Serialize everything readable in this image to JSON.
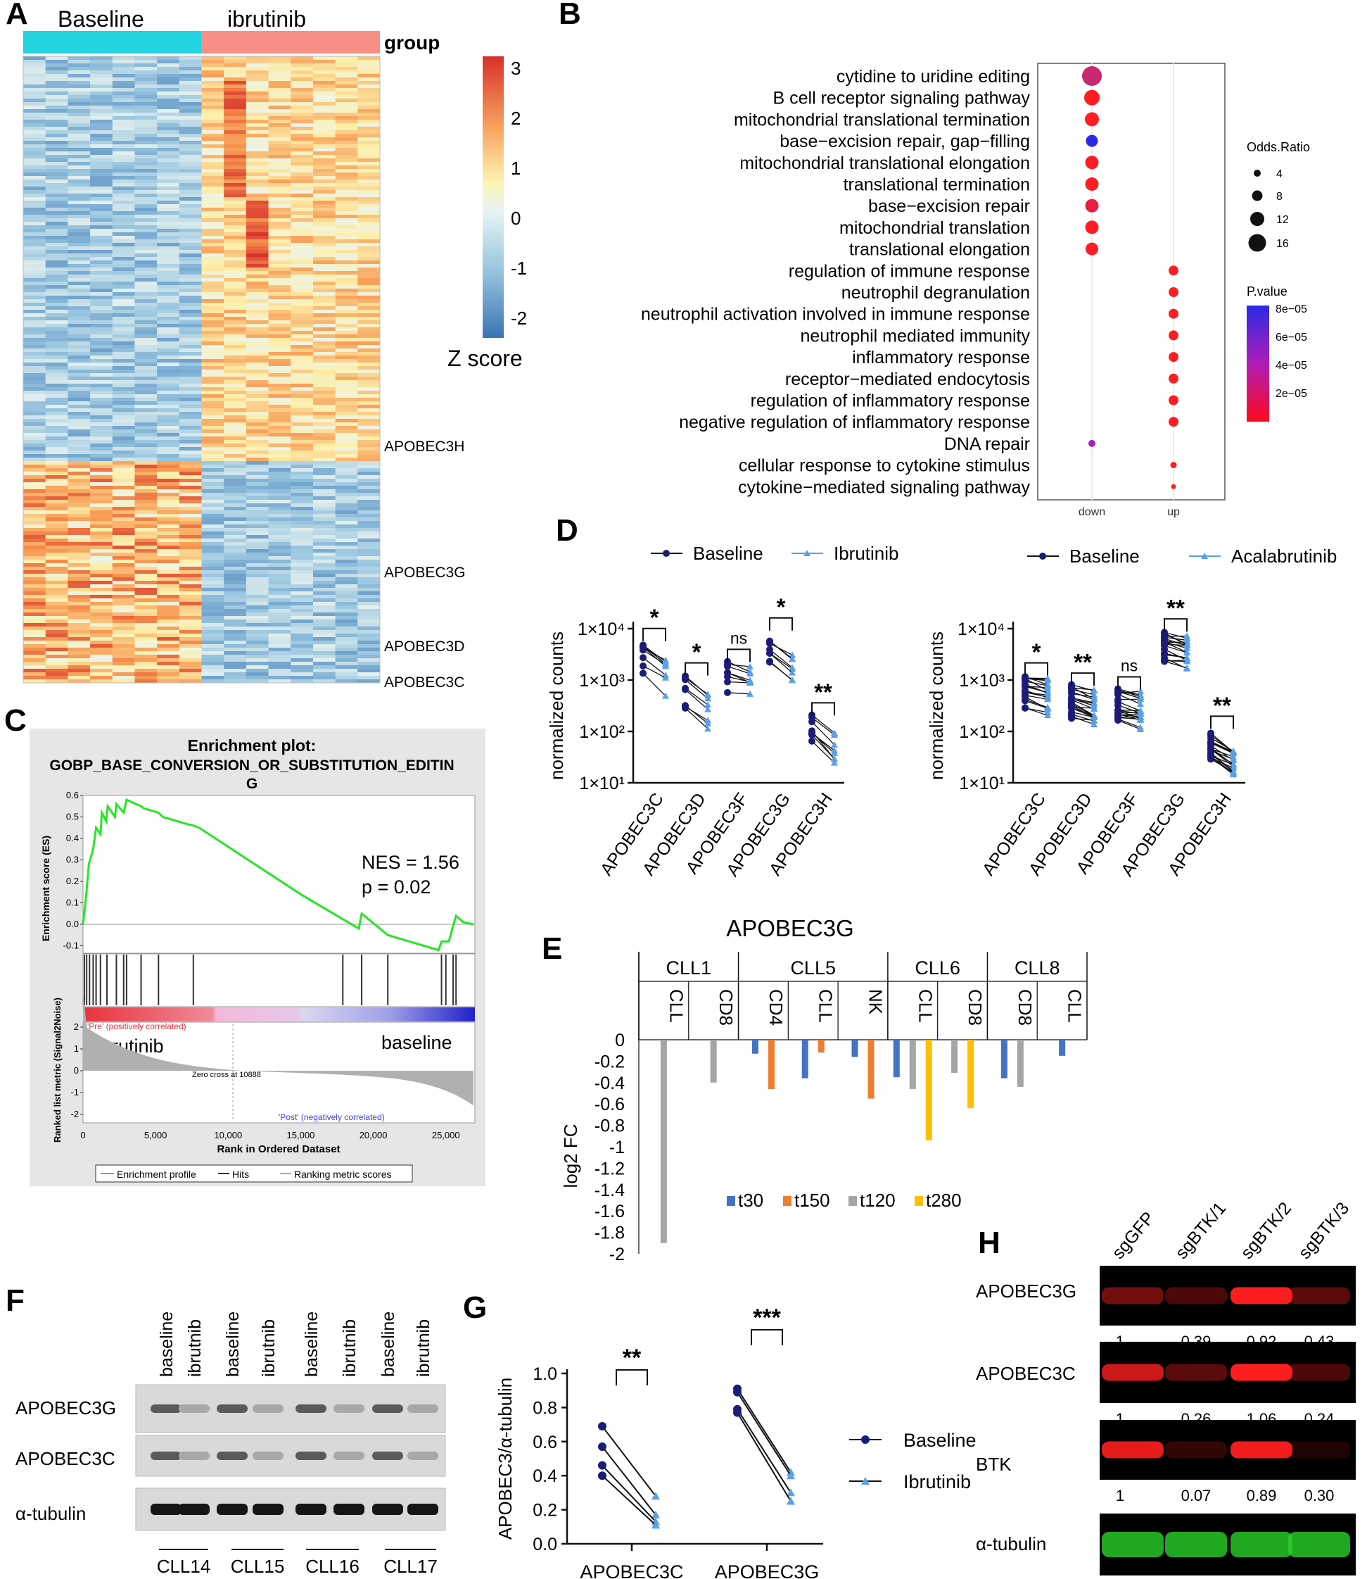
{
  "panels": {
    "A": {
      "label": "A",
      "groups": [
        "Baseline",
        "ibrutinib"
      ],
      "group_title": "group",
      "group_colors": [
        "#22d3e0",
        "#f88f86"
      ],
      "colorbar": {
        "title": "Z score",
        "ticks": [
          "3",
          "2",
          "1",
          "0",
          "-1",
          "-2"
        ]
      },
      "gene_labels": [
        "APOBEC3H",
        "APOBEC3G",
        "APOBEC3D",
        "APOBEC3C"
      ]
    },
    "B": {
      "label": "B",
      "terms": [
        "cytidine to uridine editing",
        "B cell receptor signaling pathway",
        "mitochondrial translational termination",
        "base−excision repair, gap−filling",
        "mitochondrial translational elongation",
        "translational termination",
        "base−excision repair",
        "mitochondrial translation",
        "translational elongation",
        "regulation of immune response",
        "neutrophil degranulation",
        "neutrophil activation involved in immune response",
        "neutrophil mediated immunity",
        "inflammatory response",
        "receptor−mediated endocytosis",
        "regulation of inflammatory response",
        "negative regulation of inflammatory response",
        "DNA repair",
        "cellular response to cytokine stimulus",
        "cytokine−mediated signaling pathway"
      ],
      "x_ticks": [
        "down",
        "up"
      ],
      "legend_size_title": "Odds.Ratio",
      "legend_size_values": [
        "4",
        "8",
        "12",
        "16"
      ],
      "legend_color_title": "P.value",
      "legend_color_values": [
        "8e−05",
        "6e−05",
        "4e−05",
        "2e−05"
      ]
    },
    "C": {
      "label": "C",
      "title_line1": "Enrichment plot:",
      "title_line2": "GOBP_BASE_CONVERSION_OR_SUBSTITUTION_EDITIN",
      "title_line3": "G",
      "ylabel_top": "Enrichment score (ES)",
      "ylabel_bottom": "Ranked list metric (Signal2Noise)",
      "xlabel": "Rank in Ordered Dataset",
      "es_ticks": [
        "0.6",
        "0.5",
        "0.4",
        "0.3",
        "0.2",
        "0.1",
        "0.0",
        "-0.1"
      ],
      "metric_ticks": [
        "2",
        "1",
        "0",
        "-1",
        "-2"
      ],
      "x_ticks": [
        "0",
        "5,000",
        "10,000",
        "15,000",
        "20,000",
        "25,000"
      ],
      "nes": "NES = 1.56",
      "pval": "p = 0.02",
      "pre_label": "'Pre' (positively correlated)",
      "post_label": "'Post' (negatively correlated)",
      "zero_cross": "Zero cross at 10888",
      "left_group": "ibrutinib",
      "right_group": "baseline",
      "legend": [
        "Enrichment profile",
        "Hits",
        "Ranking metric scores"
      ]
    },
    "D": {
      "label": "D",
      "ylabel": "normalized counts",
      "y_ticks": [
        "1×10⁴",
        "1×10³",
        "1×10²",
        "1×10¹"
      ],
      "genes": [
        "APOBEC3C",
        "APOBEC3D",
        "APOBEC3F",
        "APOBEC3G",
        "APOBEC3H"
      ],
      "left": {
        "legend": [
          "Baseline",
          "Ibrutinib"
        ],
        "sig": [
          "*",
          "*",
          "ns",
          "*",
          "**"
        ]
      },
      "right": {
        "legend": [
          "Baseline",
          "Acalabrutinib"
        ],
        "sig": [
          "*",
          "**",
          "ns",
          "**",
          "**"
        ]
      }
    },
    "E": {
      "label": "E",
      "title": "APOBEC3G",
      "ylabel": "log2 FC",
      "y_ticks": [
        "0",
        "-0.2",
        "-0.4",
        "-0.6",
        "-0.8",
        "-1",
        "-1.2",
        "-1.4",
        "-1.6",
        "-1.8",
        "-2"
      ],
      "legend": [
        "t30",
        "t150",
        "t120",
        "t280"
      ],
      "colors": [
        "#4472c4",
        "#ed7d31",
        "#a5a5a5",
        "#ffc000"
      ]
    },
    "F": {
      "label": "F",
      "lanes": [
        "baseline",
        "ibrutnib",
        "baseline",
        "ibrutnib",
        "baseline",
        "ibrutnib",
        "baseline",
        "ibrutnib"
      ],
      "rows": [
        "APOBEC3G",
        "APOBEC3C",
        "α-tubulin"
      ],
      "patients": [
        "CLL14",
        "CLL15",
        "CLL16",
        "CLL17"
      ]
    },
    "G": {
      "label": "G",
      "ylabel": "APOBEC3/α-tubulin",
      "y_ticks": [
        "1.0",
        "0.8",
        "0.6",
        "0.4",
        "0.2",
        "0.0"
      ],
      "x_labels": [
        "APOBEC3C",
        "APOBEC3G"
      ],
      "sig": [
        "**",
        "***"
      ],
      "legend": [
        "Baseline",
        "Ibrutinib"
      ]
    },
    "H": {
      "label": "H",
      "lanes": [
        "sgGFP",
        "sgBTK/1",
        "sgBTK/2",
        "sgBTK/3"
      ],
      "rows": [
        "APOBEC3G",
        "APOBEC3C",
        "BTK",
        "α-tubulin"
      ],
      "quant_a3g": [
        "1",
        "0.39",
        "0.92",
        "0.43"
      ],
      "quant_a3c": [
        "1",
        "0.26",
        "1.06",
        "0.24"
      ],
      "quant_btk": [
        "1",
        "0.07",
        "0.89",
        "0.30"
      ]
    }
  },
  "chart_data": [
    {
      "type": "bar",
      "title": "APOBEC3G",
      "ylabel": "log2 FC",
      "ylim": [
        -2,
        0
      ],
      "categories": [
        "CLL1 CLL",
        "CLL1 CD8",
        "CLL5 CD4",
        "CLL5 CLL",
        "CLL5 NK",
        "CLL6 CLL",
        "CLL6 CD8",
        "CLL8 CD8",
        "CLL8 CLL"
      ],
      "group_labels": [
        "CLL1",
        "CLL5",
        "CLL6",
        "CLL8"
      ],
      "cell_labels": [
        "CLL",
        "CD8",
        "CD4",
        "CLL",
        "NK",
        "CLL",
        "CD8",
        "CD8",
        "CLL"
      ],
      "series": [
        {
          "name": "t30",
          "values": [
            0,
            0,
            -0.13,
            -0.36,
            -0.16,
            -0.35,
            0,
            -0.36,
            -0.15
          ]
        },
        {
          "name": "t150",
          "values": [
            0,
            0,
            -0.46,
            -0.12,
            -0.55,
            0,
            0,
            0,
            0
          ]
        },
        {
          "name": "t120",
          "values": [
            -1.9,
            -0.4,
            0,
            0,
            0,
            -0.46,
            -0.31,
            -0.44,
            0
          ]
        },
        {
          "name": "t280",
          "values": [
            0,
            0,
            0,
            0,
            0,
            -0.94,
            -0.64,
            0,
            0
          ]
        }
      ]
    },
    {
      "type": "scatter",
      "title": "",
      "ylabel": "APOBEC3/α-tubulin",
      "ylim": [
        0,
        1.0
      ],
      "categories": [
        "APOBEC3C",
        "APOBEC3G"
      ],
      "series": [
        {
          "name": "Baseline",
          "values": [
            [
              0.69,
              0.57,
              0.46,
              0.4
            ],
            [
              0.91,
              0.89,
              0.79,
              0.77
            ]
          ]
        },
        {
          "name": "Ibrutinib",
          "values": [
            [
              0.28,
              0.17,
              0.13,
              0.11
            ],
            [
              0.42,
              0.4,
              0.3,
              0.25
            ]
          ]
        }
      ]
    }
  ]
}
